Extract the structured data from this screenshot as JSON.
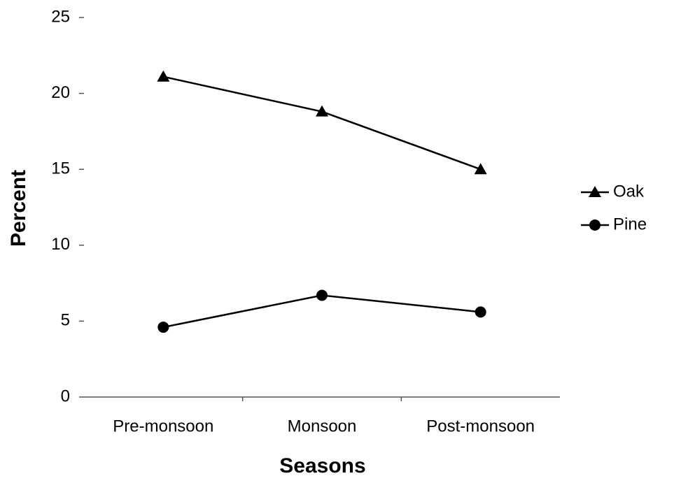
{
  "chart_data": {
    "type": "line",
    "x_label": "Seasons",
    "y_label": "Percent",
    "categories": [
      "Pre-monsoon",
      "Monsoon",
      "Post-monsoon"
    ],
    "series": [
      {
        "name": "Oak",
        "color": "#000000",
        "marker": "triangle",
        "values": [
          21.1,
          18.8,
          15.0
        ]
      },
      {
        "name": "Pine",
        "color": "#000000",
        "marker": "circle",
        "values": [
          4.6,
          6.7,
          5.6
        ]
      }
    ],
    "ylim": [
      0,
      25
    ],
    "yticks": [
      0,
      5,
      10,
      15,
      20,
      25
    ],
    "grid": false,
    "legend": "right"
  }
}
